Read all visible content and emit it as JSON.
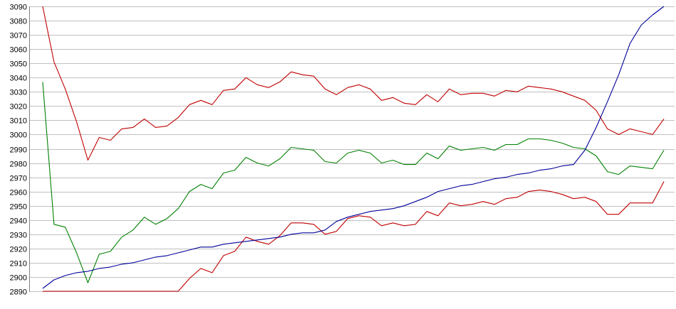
{
  "chart_data": {
    "type": "line",
    "title": "",
    "xlabel": "",
    "ylabel": "",
    "ylim": [
      2890,
      3090
    ],
    "yticks": [
      2890,
      2900,
      2910,
      2920,
      2930,
      2940,
      2950,
      2960,
      2970,
      2980,
      2990,
      3000,
      3010,
      3020,
      3030,
      3040,
      3050,
      3060,
      3070,
      3080,
      3090
    ],
    "grid": true,
    "colors": {
      "grid": "#c0c0c0",
      "axis": "#808080",
      "upper_band": "#c00000",
      "middle_line": "#008000",
      "lower_band": "#c00000",
      "trend_line": "#000099"
    },
    "series": [
      {
        "color": "#c00000",
        "values": [
          3090,
          3051,
          3032,
          3009,
          2982,
          2998,
          2996,
          3004,
          3005,
          3011,
          3005,
          3006,
          3012,
          3021,
          3024,
          3021,
          3031,
          3032,
          3040,
          3035,
          3033,
          3037,
          3044,
          3042,
          3041,
          3032,
          3028,
          3033,
          3035,
          3032,
          3024,
          3026,
          3022,
          3021,
          3028,
          3023,
          3032,
          3028,
          3029,
          3029,
          3027,
          3031,
          3030,
          3034,
          3033,
          3032,
          3030,
          3027,
          3024,
          3017,
          3004,
          3000,
          3004,
          3002,
          3000,
          3011
        ]
      },
      {
        "color": "#008000",
        "values": [
          3037,
          2937,
          2935,
          2917,
          2896,
          2916,
          2918,
          2928,
          2933,
          2942,
          2937,
          2941,
          2948,
          2960,
          2965,
          2962,
          2973,
          2975,
          2984,
          2980,
          2978,
          2983,
          2991,
          2990,
          2989,
          2981,
          2980,
          2987,
          2989,
          2987,
          2980,
          2982,
          2979,
          2979,
          2987,
          2983,
          2992,
          2989,
          2990,
          2991,
          2989,
          2993,
          2993,
          2997,
          2997,
          2996,
          2994,
          2991,
          2990,
          2985,
          2974,
          2972,
          2978,
          2977,
          2976,
          2989
        ]
      },
      {
        "color": "#c00000",
        "values": [
          2890,
          2890,
          2890,
          2890,
          2890,
          2890,
          2890,
          2890,
          2890,
          2890,
          2890,
          2890,
          2890,
          2899,
          2906,
          2903,
          2915,
          2918,
          2928,
          2925,
          2923,
          2929,
          2938,
          2938,
          2937,
          2930,
          2932,
          2941,
          2943,
          2942,
          2936,
          2938,
          2936,
          2937,
          2946,
          2943,
          2952,
          2950,
          2951,
          2953,
          2951,
          2955,
          2956,
          2960,
          2961,
          2960,
          2958,
          2955,
          2956,
          2953,
          2944,
          2944,
          2952,
          2952,
          2952,
          2967
        ]
      },
      {
        "color": "#000099",
        "values": [
          2892,
          2898,
          2901,
          2903,
          2904,
          2906,
          2907,
          2909,
          2910,
          2912,
          2914,
          2915,
          2917,
          2919,
          2921,
          2921,
          2923,
          2924,
          2925,
          2926,
          2927,
          2928,
          2930,
          2931,
          2931,
          2933,
          2939,
          2942,
          2944,
          2946,
          2947,
          2948,
          2950,
          2953,
          2956,
          2960,
          2962,
          2964,
          2965,
          2967,
          2969,
          2970,
          2972,
          2973,
          2975,
          2976,
          2978,
          2979,
          2989,
          3005,
          3023,
          3042,
          3064,
          3077,
          3084,
          3090
        ]
      }
    ]
  }
}
